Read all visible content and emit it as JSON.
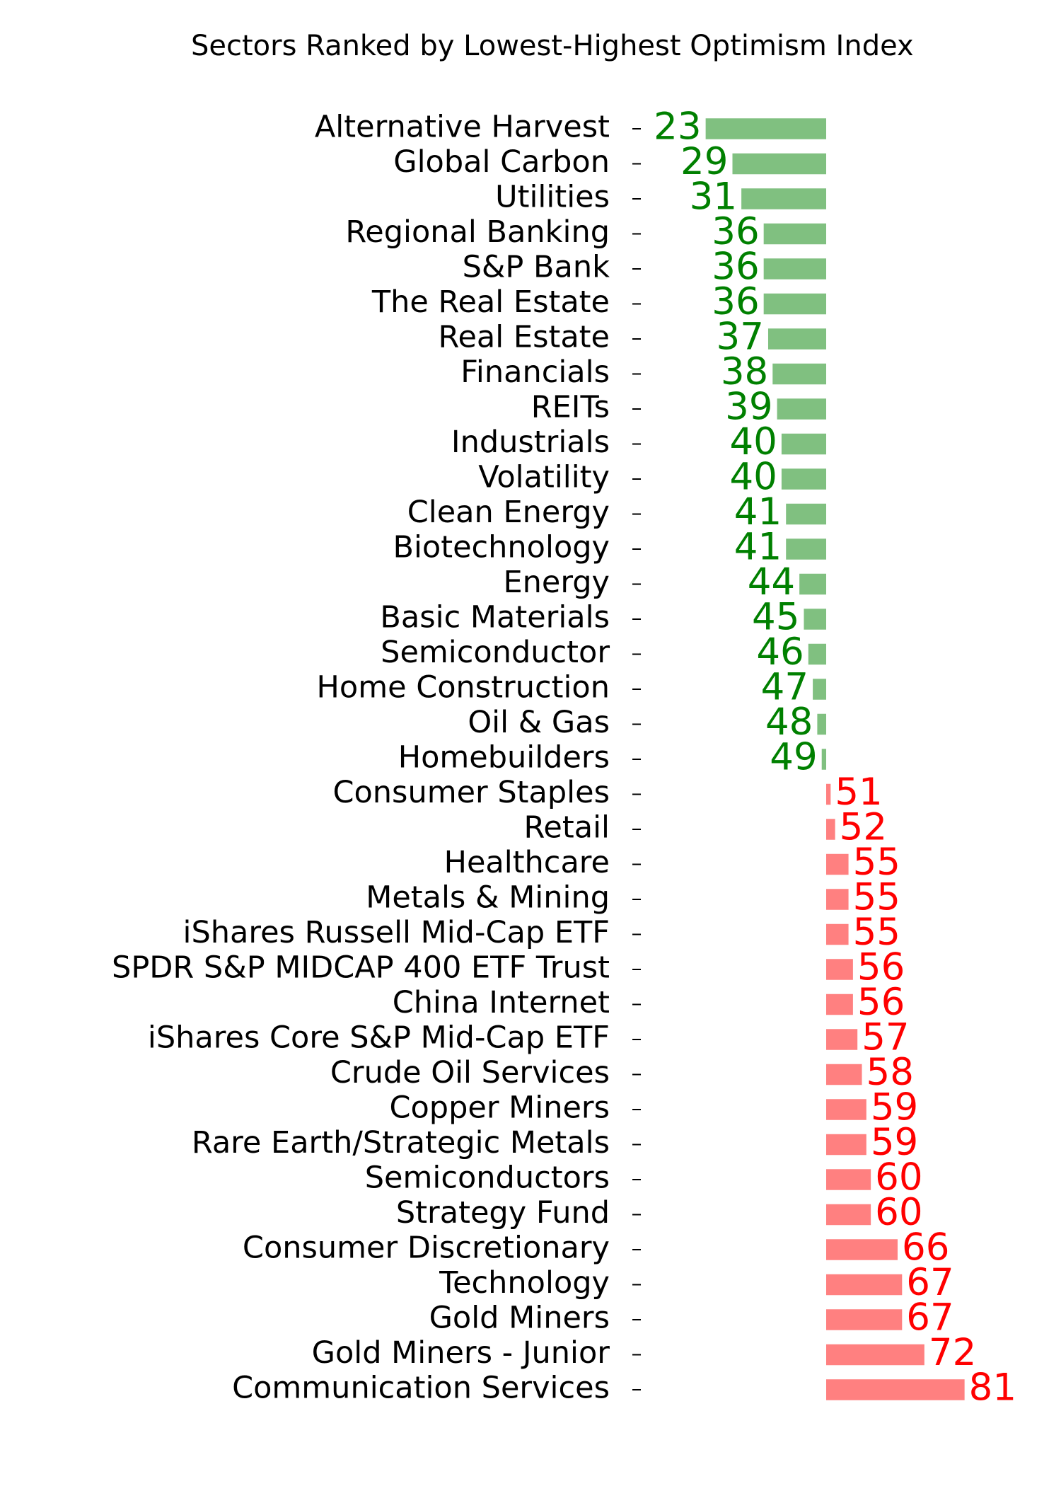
{
  "chart_data": {
    "type": "diverging-bar",
    "title": "Sectors Ranked by Lowest-Highest Optimism Index",
    "categories": [
      "Alternative Harvest",
      "Global Carbon",
      "Utilities",
      "Regional Banking",
      "S&P Bank",
      "The Real Estate",
      "Real Estate",
      "Financials",
      "REITs",
      "Industrials",
      "Volatility",
      "Clean Energy",
      "Biotechnology",
      "Energy",
      "Basic Materials",
      "Semiconductor",
      "Home Construction",
      "Oil & Gas",
      "Homebuilders",
      "Consumer Staples",
      "Retail",
      "Healthcare",
      "Metals & Mining",
      "iShares Russell Mid-Cap ETF",
      "SPDR S&P MIDCAP 400 ETF Trust",
      "China Internet",
      "iShares Core S&P Mid-Cap ETF",
      "Crude Oil Services",
      "Copper Miners",
      "Rare Earth/Strategic Metals",
      "Semiconductors",
      "Strategy Fund",
      "Consumer Discretionary",
      "Technology",
      "Gold Miners",
      "Gold Miners - Junior",
      "Communication Services"
    ],
    "values": [
      23,
      29,
      31,
      36,
      36,
      36,
      37,
      38,
      39,
      40,
      40,
      41,
      41,
      44,
      45,
      46,
      47,
      48,
      49,
      51,
      52,
      55,
      55,
      55,
      56,
      56,
      57,
      58,
      59,
      59,
      60,
      60,
      66,
      67,
      67,
      72,
      81
    ],
    "baseline": 50,
    "xlim": [
      20,
      85
    ],
    "bar_colors": [
      "#80c080",
      "#ff8080"
    ],
    "label_colors": [
      "#008000",
      "#ff0000"
    ]
  }
}
